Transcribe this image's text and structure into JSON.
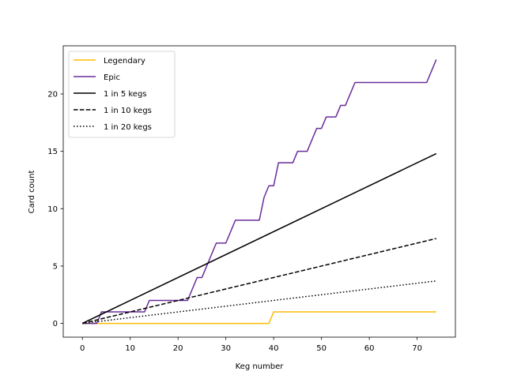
{
  "chart_data": {
    "type": "line",
    "title": "",
    "xlabel": "Keg number",
    "ylabel": "Card count",
    "xlim": [
      -4,
      78
    ],
    "ylim": [
      -1.2,
      24.2
    ],
    "xticks": [
      0,
      10,
      20,
      30,
      40,
      50,
      60,
      70
    ],
    "yticks": [
      0,
      5,
      10,
      15,
      20
    ],
    "grid": false,
    "legend": "top-left",
    "series": [
      {
        "name": "Legendary",
        "color": "#fbbc05",
        "style": "solid",
        "x": [
          0,
          39,
          40,
          74
        ],
        "y": [
          0,
          0,
          1,
          1
        ]
      },
      {
        "name": "Epic",
        "color": "#6a2c9a",
        "style": "solid",
        "x": [
          0,
          3,
          4,
          13,
          14,
          22,
          24,
          25,
          28,
          30,
          32,
          37,
          38,
          39,
          40,
          41,
          44,
          45,
          47,
          49,
          50,
          51,
          53,
          54,
          55,
          57,
          72,
          74
        ],
        "y": [
          0,
          0,
          1,
          1,
          2,
          2,
          4,
          4,
          7,
          7,
          9,
          9,
          11,
          12,
          12,
          14,
          14,
          15,
          15,
          17,
          17,
          18,
          18,
          19,
          19,
          21,
          21,
          23
        ]
      },
      {
        "name": "1 in 5 kegs",
        "color": "#000000",
        "style": "solid",
        "x": [
          0,
          74
        ],
        "y": [
          0,
          14.8
        ]
      },
      {
        "name": "1 in 10 kegs",
        "color": "#000000",
        "style": "dashed",
        "x": [
          0,
          74
        ],
        "y": [
          0,
          7.4
        ]
      },
      {
        "name": "1 in 20 kegs",
        "color": "#000000",
        "style": "dotted",
        "x": [
          0,
          74
        ],
        "y": [
          0,
          3.7
        ]
      }
    ]
  }
}
